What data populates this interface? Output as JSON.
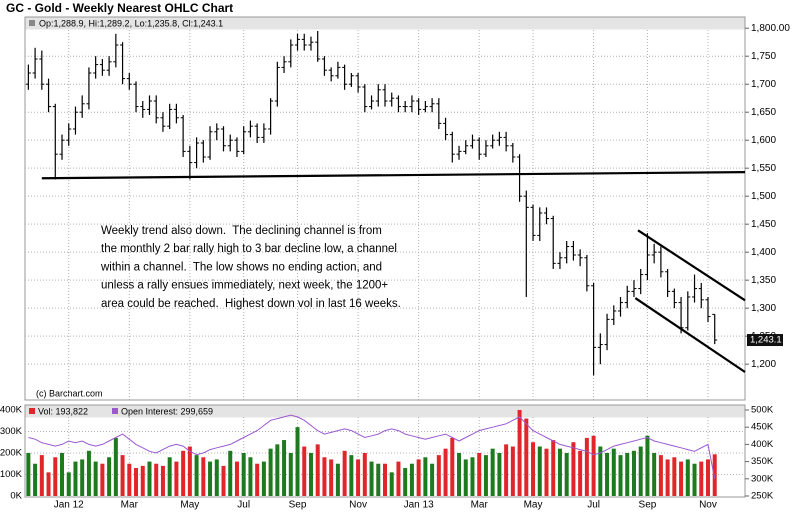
{
  "chart_data": [
    {
      "type": "ohlc",
      "title": "GC - Gold - Weekly Nearest OHLC Chart",
      "ohlc_legend": "Op:1,288.9, Hi:1,289.2, Lo:1,235.8, Cl:1,243.1",
      "last_price_label": "1,243.1",
      "copyright": "(c) Barchart.com",
      "annotation": [
        "Weekly trend also down.  The declining channel is from",
        "the monthly 2 bar rally high to 3 bar decline low, a channel",
        "within a channel.  The low shows no ending action, and",
        "unless a rally ensues immediately, next week, the 1200+",
        "area could be reached.  Highest down vol in last 16 weeks."
      ],
      "color": "#000000",
      "grid": true,
      "xlim": [
        -0.5,
        106.5
      ],
      "xticks": [
        {
          "value": 6,
          "label": "Jan 12"
        },
        {
          "value": 15,
          "label": "Mar"
        },
        {
          "value": 24,
          "label": "May"
        },
        {
          "value": 32,
          "label": "Jul"
        },
        {
          "value": 40,
          "label": "Sep"
        },
        {
          "value": 49,
          "label": "Nov"
        },
        {
          "value": 58,
          "label": "Jan 13"
        },
        {
          "value": 67,
          "label": "Mar"
        },
        {
          "value": 75,
          "label": "May"
        },
        {
          "value": 84,
          "label": "Jul"
        },
        {
          "value": 92,
          "label": "Sep"
        },
        {
          "value": 101,
          "label": "Nov"
        }
      ],
      "ylim": [
        1136,
        1820
      ],
      "yticks": [
        {
          "value": 1200,
          "label": "1,200"
        },
        {
          "value": 1250,
          "label": "1,250"
        },
        {
          "value": 1300,
          "label": "1,300"
        },
        {
          "value": 1350,
          "label": "1,350"
        },
        {
          "value": 1400,
          "label": "1,400"
        },
        {
          "value": 1450,
          "label": "1,450"
        },
        {
          "value": 1500,
          "label": "1,500"
        },
        {
          "value": 1550,
          "label": "1,550"
        },
        {
          "value": 1600,
          "label": "1,600"
        },
        {
          "value": 1650,
          "label": "1,650"
        },
        {
          "value": 1700,
          "label": "1,700"
        },
        {
          "value": 1750,
          "label": "1,750"
        },
        {
          "value": 1800,
          "label": "1,800.00"
        }
      ],
      "open": [
        1700,
        1720,
        1745,
        1700,
        1660,
        1575,
        1600,
        1620,
        1650,
        1665,
        1720,
        1735,
        1725,
        1740,
        1770,
        1710,
        1700,
        1660,
        1655,
        1670,
        1640,
        1625,
        1655,
        1640,
        1580,
        1560,
        1595,
        1570,
        1615,
        1620,
        1590,
        1600,
        1580,
        1615,
        1625,
        1605,
        1620,
        1670,
        1730,
        1740,
        1770,
        1780,
        1770,
        1775,
        1745,
        1725,
        1715,
        1730,
        1700,
        1715,
        1695,
        1660,
        1670,
        1690,
        1670,
        1675,
        1660,
        1660,
        1670,
        1655,
        1660,
        1665,
        1630,
        1610,
        1575,
        1580,
        1590,
        1600,
        1575,
        1590,
        1600,
        1605,
        1590,
        1570,
        1500,
        1480,
        1430,
        1470,
        1460,
        1380,
        1390,
        1410,
        1395,
        1390,
        1340,
        1230,
        1235,
        1280,
        1295,
        1310,
        1330,
        1335,
        1360,
        1395,
        1400,
        1365,
        1330,
        1310,
        1265,
        1320,
        1335,
        1315,
        1288.9
      ],
      "high": [
        1735,
        1765,
        1760,
        1710,
        1665,
        1610,
        1630,
        1660,
        1680,
        1730,
        1750,
        1745,
        1750,
        1790,
        1775,
        1720,
        1705,
        1670,
        1680,
        1680,
        1650,
        1665,
        1665,
        1645,
        1590,
        1605,
        1600,
        1625,
        1630,
        1625,
        1610,
        1605,
        1625,
        1635,
        1630,
        1630,
        1675,
        1740,
        1750,
        1780,
        1790,
        1790,
        1785,
        1795,
        1750,
        1730,
        1740,
        1735,
        1720,
        1720,
        1700,
        1680,
        1700,
        1700,
        1685,
        1680,
        1670,
        1680,
        1675,
        1670,
        1675,
        1675,
        1640,
        1615,
        1590,
        1600,
        1610,
        1605,
        1600,
        1610,
        1615,
        1615,
        1595,
        1575,
        1510,
        1485,
        1480,
        1480,
        1465,
        1400,
        1420,
        1420,
        1405,
        1395,
        1345,
        1255,
        1290,
        1305,
        1320,
        1340,
        1350,
        1370,
        1434,
        1415,
        1410,
        1370,
        1335,
        1320,
        1330,
        1360,
        1345,
        1320,
        1289.2
      ],
      "low": [
        1690,
        1710,
        1690,
        1650,
        1530,
        1565,
        1590,
        1610,
        1640,
        1655,
        1710,
        1715,
        1715,
        1730,
        1700,
        1690,
        1650,
        1640,
        1645,
        1630,
        1615,
        1620,
        1630,
        1570,
        1530,
        1550,
        1560,
        1565,
        1600,
        1580,
        1580,
        1570,
        1575,
        1605,
        1595,
        1595,
        1610,
        1660,
        1720,
        1730,
        1760,
        1760,
        1760,
        1740,
        1715,
        1705,
        1710,
        1690,
        1695,
        1685,
        1650,
        1655,
        1660,
        1660,
        1660,
        1650,
        1650,
        1650,
        1645,
        1650,
        1650,
        1620,
        1600,
        1560,
        1565,
        1575,
        1585,
        1565,
        1570,
        1585,
        1590,
        1580,
        1560,
        1490,
        1320,
        1420,
        1420,
        1450,
        1370,
        1370,
        1380,
        1385,
        1375,
        1330,
        1180,
        1200,
        1225,
        1270,
        1285,
        1300,
        1320,
        1325,
        1350,
        1380,
        1355,
        1320,
        1300,
        1255,
        1260,
        1310,
        1300,
        1275,
        1235.8
      ],
      "close": [
        1720,
        1745,
        1700,
        1660,
        1575,
        1600,
        1620,
        1650,
        1665,
        1720,
        1735,
        1725,
        1740,
        1770,
        1710,
        1700,
        1660,
        1655,
        1670,
        1640,
        1625,
        1655,
        1640,
        1580,
        1560,
        1595,
        1570,
        1615,
        1620,
        1590,
        1600,
        1580,
        1615,
        1625,
        1605,
        1620,
        1670,
        1730,
        1740,
        1770,
        1780,
        1770,
        1775,
        1745,
        1725,
        1715,
        1730,
        1700,
        1715,
        1695,
        1660,
        1670,
        1690,
        1670,
        1675,
        1660,
        1660,
        1670,
        1655,
        1660,
        1665,
        1630,
        1610,
        1575,
        1580,
        1590,
        1600,
        1575,
        1590,
        1600,
        1605,
        1590,
        1570,
        1500,
        1480,
        1430,
        1470,
        1460,
        1380,
        1390,
        1410,
        1395,
        1390,
        1340,
        1230,
        1235,
        1280,
        1295,
        1310,
        1330,
        1335,
        1360,
        1395,
        1400,
        1365,
        1330,
        1310,
        1265,
        1320,
        1335,
        1315,
        1285,
        1243.1
      ],
      "trend_lines": [
        {
          "x": [
            2,
            106.5
          ],
          "y": [
            1532,
            1543
          ]
        },
        {
          "x": [
            90.6,
            106.5
          ],
          "y": [
            1439,
            1314
          ]
        },
        {
          "x": [
            90.2,
            106.5
          ],
          "y": [
            1318,
            1186
          ]
        }
      ]
    },
    {
      "type": "bar",
      "legend_labels": [
        "Vol: 193,822",
        "Open Interest: 299,659"
      ],
      "up_color": "#1e7a1e",
      "down_color": "#e0262b",
      "ylim": [
        0,
        423000
      ],
      "yticks": [
        {
          "value": 0,
          "label": "0K"
        },
        {
          "value": 100000,
          "label": "100K"
        },
        {
          "value": 200000,
          "label": "200K"
        },
        {
          "value": 300000,
          "label": "300K"
        },
        {
          "value": 400000,
          "label": "400K"
        }
      ],
      "y2lim": [
        250000,
        514500
      ],
      "y2ticks": [
        {
          "value": 250000,
          "label": "250K"
        },
        {
          "value": 300000,
          "label": "300K"
        },
        {
          "value": 350000,
          "label": "350K"
        },
        {
          "value": 400000,
          "label": "400K"
        },
        {
          "value": 450000,
          "label": "450K"
        },
        {
          "value": 500000,
          "label": "500K"
        }
      ],
      "series": [
        {
          "values": [
            200000,
            150000,
            190000,
            110000,
            180000,
            200000,
            110000,
            160000,
            170000,
            210000,
            160000,
            150000,
            180000,
            270000,
            190000,
            150000,
            130000,
            140000,
            160000,
            150000,
            140000,
            180000,
            160000,
            210000,
            230000,
            190000,
            180000,
            160000,
            170000,
            140000,
            210000,
            160000,
            200000,
            180000,
            150000,
            160000,
            220000,
            240000,
            260000,
            200000,
            320000,
            230000,
            200000,
            240000,
            180000,
            170000,
            150000,
            210000,
            190000,
            170000,
            200000,
            160000,
            150000,
            150000,
            110000,
            160000,
            130000,
            150000,
            170000,
            180000,
            150000,
            190000,
            220000,
            270000,
            200000,
            170000,
            180000,
            200000,
            190000,
            220000,
            200000,
            240000,
            230000,
            400000,
            360000,
            250000,
            230000,
            220000,
            260000,
            220000,
            200000,
            250000,
            210000,
            270000,
            280000,
            230000,
            200000,
            220000,
            190000,
            200000,
            210000,
            230000,
            280000,
            200000,
            190000,
            170000,
            180000,
            160000,
            170000,
            150000,
            160000,
            170000,
            193822
          ]
        },
        {
          "axis": "y2",
          "color": "#9b59d0",
          "values": [
            420000,
            415000,
            405000,
            400000,
            395000,
            400000,
            410000,
            405000,
            410000,
            400000,
            395000,
            400000,
            410000,
            420000,
            430000,
            415000,
            400000,
            390000,
            380000,
            375000,
            385000,
            395000,
            400000,
            395000,
            380000,
            370000,
            375000,
            385000,
            390000,
            395000,
            400000,
            410000,
            420000,
            430000,
            440000,
            455000,
            470000,
            475000,
            480000,
            485000,
            480000,
            470000,
            455000,
            440000,
            430000,
            435000,
            440000,
            445000,
            440000,
            430000,
            420000,
            425000,
            430000,
            440000,
            445000,
            440000,
            430000,
            425000,
            420000,
            415000,
            420000,
            425000,
            430000,
            420000,
            410000,
            420000,
            430000,
            440000,
            445000,
            450000,
            455000,
            460000,
            470000,
            480000,
            460000,
            440000,
            430000,
            420000,
            410000,
            400000,
            395000,
            390000,
            385000,
            380000,
            370000,
            375000,
            385000,
            395000,
            400000,
            405000,
            410000,
            415000,
            420000,
            410000,
            405000,
            400000,
            395000,
            390000,
            385000,
            380000,
            390000,
            400000,
            299659
          ]
        }
      ]
    }
  ]
}
